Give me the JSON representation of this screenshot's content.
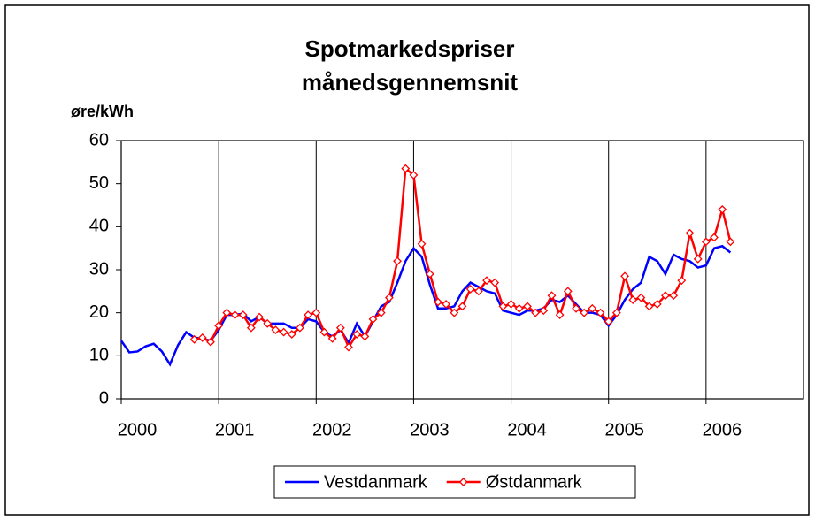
{
  "chart_data": {
    "type": "line",
    "title": [
      "Spotmarkedspriser",
      "månedsgennemsnit"
    ],
    "y_label": "øre/kWh",
    "x": [
      2000,
      2000.083,
      2000.167,
      2000.25,
      2000.333,
      2000.417,
      2000.5,
      2000.583,
      2000.667,
      2000.75,
      2000.833,
      2000.917,
      2001,
      2001.083,
      2001.167,
      2001.25,
      2001.333,
      2001.417,
      2001.5,
      2001.583,
      2001.667,
      2001.75,
      2001.833,
      2001.917,
      2002,
      2002.083,
      2002.167,
      2002.25,
      2002.333,
      2002.417,
      2002.5,
      2002.583,
      2002.667,
      2002.75,
      2002.833,
      2002.917,
      2003,
      2003.083,
      2003.167,
      2003.25,
      2003.333,
      2003.417,
      2003.5,
      2003.583,
      2003.667,
      2003.75,
      2003.833,
      2003.917,
      2004,
      2004.083,
      2004.167,
      2004.25,
      2004.333,
      2004.417,
      2004.5,
      2004.583,
      2004.667,
      2004.75,
      2004.833,
      2004.917,
      2005,
      2005.083,
      2005.167,
      2005.25,
      2005.333,
      2005.417,
      2005.5,
      2005.583,
      2005.667,
      2005.75,
      2005.833,
      2005.917,
      2006,
      2006.083,
      2006.167,
      2006.25
    ],
    "series": [
      {
        "name": "Vestdanmark",
        "color": "#0000ff",
        "marker": false,
        "values": [
          13.5,
          10.8,
          11,
          12.2,
          12.8,
          11,
          8,
          12.5,
          15.5,
          14.2,
          14,
          13.5,
          16,
          19.5,
          19.5,
          19.8,
          18,
          19,
          17.5,
          17.5,
          17.5,
          16.5,
          16.5,
          18.5,
          18,
          15.5,
          14.5,
          16,
          13,
          17.5,
          14.5,
          18,
          21.5,
          22.5,
          27,
          32,
          35,
          33,
          26.5,
          21,
          21,
          21.5,
          25,
          27,
          26,
          25,
          24.5,
          20.5,
          20,
          19.5,
          20.5,
          20.5,
          21,
          23,
          22.5,
          24,
          22,
          20,
          20,
          19.5,
          17,
          19.5,
          23,
          25.5,
          27,
          33,
          32,
          29,
          33.5,
          32.5,
          32,
          30.5,
          31,
          35,
          35.5,
          34
        ]
      },
      {
        "name": "Østdanmark",
        "color": "#ff0000",
        "marker": true,
        "values": [
          null,
          null,
          null,
          null,
          null,
          null,
          null,
          null,
          null,
          13.8,
          14.2,
          13.2,
          17,
          20,
          19.5,
          19.5,
          16.5,
          19,
          17.5,
          16,
          15.5,
          15,
          16.5,
          19.5,
          20,
          15.5,
          14,
          16.5,
          12,
          15,
          14.5,
          18.5,
          20,
          23.5,
          32,
          53.5,
          52,
          36,
          29,
          22.5,
          22,
          20,
          21.5,
          25.5,
          25,
          27.5,
          27,
          21.5,
          22,
          21,
          21.5,
          20,
          20.5,
          24,
          19.5,
          25,
          21,
          20,
          21,
          20,
          18,
          20,
          28.5,
          23,
          23.5,
          21.5,
          22,
          24,
          24,
          27.5,
          38.5,
          32.5,
          36.5,
          37.5,
          44,
          36.5
        ]
      }
    ],
    "xlim": [
      2000,
      2007
    ],
    "xticks": [
      2000,
      2001,
      2002,
      2003,
      2004,
      2005,
      2006
    ],
    "ylim": [
      0,
      60
    ],
    "yticks": [
      0,
      10,
      20,
      30,
      40,
      50,
      60
    ],
    "grid": "x",
    "legend": "bottom"
  }
}
